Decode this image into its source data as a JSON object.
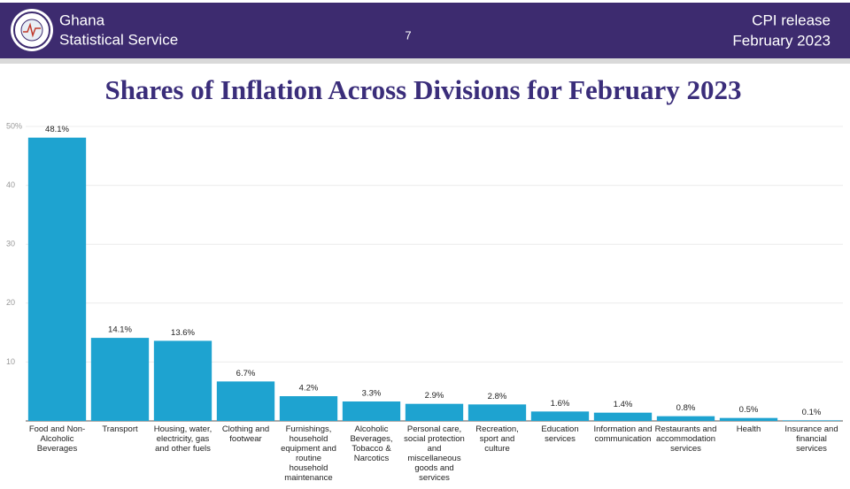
{
  "header": {
    "org_line1": "Ghana",
    "org_line2": "Statistical Service",
    "page_number": "7",
    "release_line1": "CPI release",
    "release_line2": "February  2023"
  },
  "chart_data": {
    "type": "bar",
    "title": "Shares of Inflation Across Divisions for February 2023",
    "categories": [
      "Food and Non-Alcoholic Beverages",
      "Transport",
      "Housing, water, electricity, gas and other fuels",
      "Clothing and footwear",
      "Furnishings, household equipment and routine household maintenance",
      "Alcoholic Beverages, Tobacco & Narcotics",
      "Personal care, social protection and miscellaneous goods and services",
      "Recreation, sport and culture",
      "Education services",
      "Information and communication",
      "Restaurants and accommodation services",
      "Health",
      "Insurance and financial services"
    ],
    "values": [
      48.1,
      14.1,
      13.6,
      6.7,
      4.2,
      3.3,
      2.9,
      2.8,
      1.6,
      1.4,
      0.8,
      0.5,
      0.1
    ],
    "value_labels": [
      "48.1%",
      "14.1%",
      "13.6%",
      "6.7%",
      "4.2%",
      "3.3%",
      "2.9%",
      "2.8%",
      "1.6%",
      "1.4%",
      "0.8%",
      "0.5%",
      "0.1%"
    ],
    "color": "#1ea3d0",
    "ylim": [
      0,
      50
    ],
    "yticks": [
      10,
      20,
      30,
      40,
      {
        "value": 50,
        "label": "50%"
      }
    ],
    "grid": true
  }
}
